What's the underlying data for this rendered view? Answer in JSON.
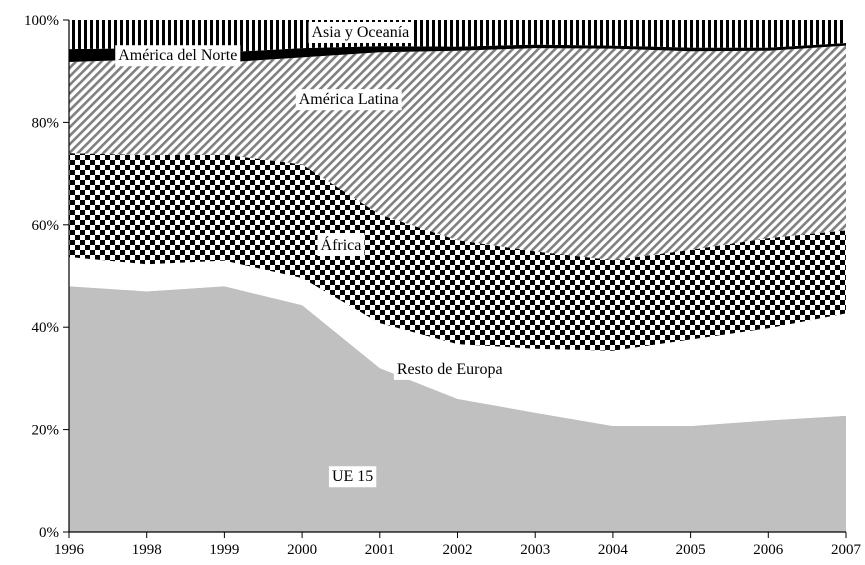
{
  "chart_data": {
    "type": "area",
    "stacked": true,
    "normalized": true,
    "x": [
      "1996",
      "1998",
      "1999",
      "2000",
      "2001",
      "2002",
      "2003",
      "2004",
      "2005",
      "2006",
      "2007"
    ],
    "ylim": [
      0,
      100
    ],
    "y_ticks": [
      "0%",
      "20%",
      "40%",
      "60%",
      "80%",
      "100%"
    ],
    "grid": false,
    "legend": "none",
    "series": [
      {
        "name": "UE 15",
        "fill": "#c0c0c0",
        "pattern": "solid",
        "values": [
          48,
          47,
          48,
          44.3,
          32,
          26,
          23.3,
          20.7,
          20.7,
          21.8,
          22.7
        ]
      },
      {
        "name": "Resto de Europa",
        "fill": "#ffffff",
        "pattern": "solid",
        "values": [
          5.7,
          5.3,
          5,
          5.3,
          8.8,
          10.7,
          12.5,
          14.7,
          16.9,
          18,
          20
        ]
      },
      {
        "name": "África",
        "fill": "#000000",
        "pattern": "checker",
        "values": [
          20.3,
          21.3,
          20.7,
          22.2,
          21.2,
          20.3,
          19,
          17.7,
          17.5,
          17.6,
          16.2
        ]
      },
      {
        "name": "América Latina",
        "fill": "#808080",
        "pattern": "diagonal-stripes",
        "values": [
          17.8,
          18.7,
          18,
          20.9,
          31.7,
          37,
          39.7,
          41.3,
          38.8,
          36.6,
          36.1
        ]
      },
      {
        "name": "América del Norte",
        "fill": "#000000",
        "pattern": "solid",
        "values": [
          2.5,
          2.2,
          2,
          1.8,
          1.2,
          0.8,
          0.7,
          0.6,
          0.7,
          0.6,
          0.5
        ]
      },
      {
        "name": "Asia y Oceanía",
        "fill": "#000000",
        "pattern": "vertical-stripes",
        "values": [
          5.7,
          5.5,
          6.3,
          5.5,
          5.1,
          5.2,
          4.8,
          5,
          5.4,
          5.4,
          4.5
        ]
      }
    ]
  }
}
